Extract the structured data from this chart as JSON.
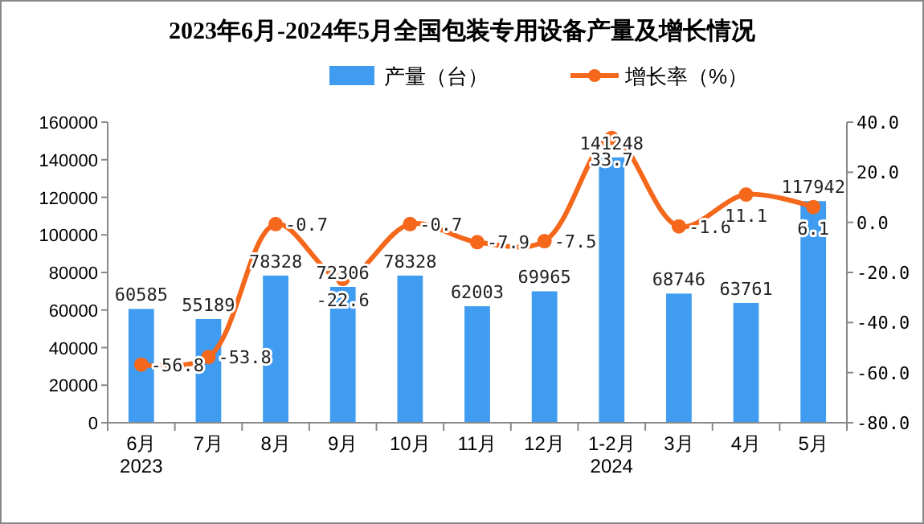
{
  "chart_data": {
    "type": "bar",
    "title": "2023年6月-2024年5月全国包装专用设备产量及增长情况",
    "categories": [
      "6月\n2023",
      "7月",
      "8月",
      "9月",
      "10月",
      "11月",
      "12月",
      "1-2月\n2024",
      "3月",
      "4月",
      "5月"
    ],
    "series": [
      {
        "name": "产量（台）",
        "color": "#3f9cf0",
        "values": [
          60585,
          55189,
          78328,
          72306,
          78328,
          62003,
          69965,
          141248,
          68746,
          63761,
          117942
        ]
      },
      {
        "name": "增长率（%）",
        "type": "line",
        "axis": "y2",
        "color": "#f5671b",
        "marker": "circle",
        "values": [
          -56.8,
          -53.8,
          -0.7,
          -22.6,
          -0.7,
          -7.9,
          -7.5,
          33.7,
          -1.6,
          11.1,
          6.1
        ]
      }
    ],
    "ylim": [
      0,
      160000
    ],
    "yticks": [
      0,
      20000,
      40000,
      60000,
      80000,
      100000,
      120000,
      140000,
      160000
    ],
    "y2lim": [
      -80,
      40
    ],
    "y2ticks": [
      {
        "value": -80,
        "label": "-80.0"
      },
      {
        "value": -60,
        "label": "-60.0"
      },
      {
        "value": -40,
        "label": "-40.0"
      },
      {
        "value": -20,
        "label": "-20.0"
      },
      {
        "value": 0,
        "label": "0.0"
      },
      {
        "value": 20,
        "label": "20.0"
      },
      {
        "value": 40,
        "label": "40.0"
      }
    ],
    "data_labels": true,
    "legend": "top",
    "grid": false
  }
}
